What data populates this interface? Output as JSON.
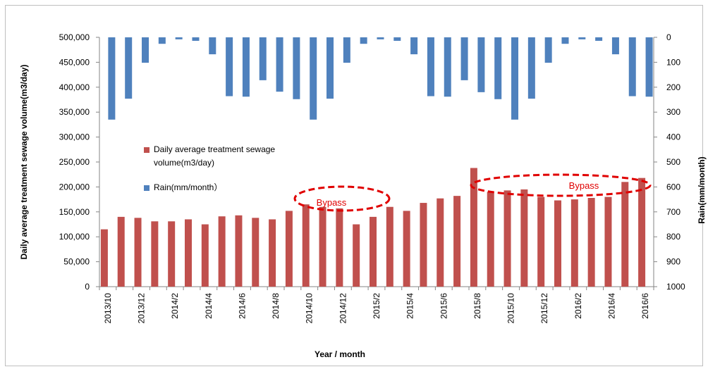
{
  "chart_data": {
    "type": "bar",
    "x_label": "Year / month",
    "y_label": "Daily average treatment sewage volume(m3/day)",
    "y2_label": "Rain(mm/month)",
    "categories": [
      "2013/10",
      null,
      "2013/12",
      null,
      "2014/2",
      null,
      "2014/4",
      null,
      "2014/6",
      null,
      "2014/8",
      null,
      "2014/10",
      null,
      "2014/12",
      null,
      "2015/2",
      null,
      "2015/4",
      null,
      "2015/6",
      null,
      "2015/8",
      null,
      "2015/10",
      null,
      "2015/12",
      null,
      "2016/2",
      null,
      "2016/4",
      null,
      "2016/6"
    ],
    "series": [
      {
        "name": "Daily average treatment sewage volume(m3/day)",
        "color": "#c0504d",
        "axis": "y",
        "values": [
          115000,
          140000,
          138000,
          131000,
          131000,
          135000,
          125000,
          141000,
          143000,
          138000,
          135000,
          152000,
          165000,
          160000,
          157000,
          125000,
          140000,
          160000,
          152000,
          168000,
          177000,
          182000,
          238000,
          190000,
          193000,
          195000,
          180000,
          173000,
          175000,
          178000,
          180000,
          210000,
          218000
        ]
      },
      {
        "name": "Rain(mm/month）",
        "color": "#4f81bd",
        "axis": "y2",
        "values": [
          330,
          246,
          102,
          26,
          8,
          14,
          68,
          236,
          238,
          172,
          218,
          248,
          330,
          246,
          102,
          26,
          8,
          14,
          68,
          236,
          238,
          172,
          220,
          248,
          330,
          246,
          102,
          26,
          8,
          14,
          68,
          236,
          238
        ]
      }
    ],
    "ylim": [
      0,
      500000
    ],
    "yticks": [
      0,
      {
        "value": 50000,
        "label": "50,000"
      },
      {
        "value": 100000,
        "label": "100,000"
      },
      {
        "value": 150000,
        "label": "150,000"
      },
      {
        "value": 200000,
        "label": "200,000"
      },
      {
        "value": 250000,
        "label": "250,000"
      },
      {
        "value": 300000,
        "label": "300,000"
      },
      {
        "value": 350000,
        "label": "350,000"
      },
      {
        "value": 400000,
        "label": "400,000"
      },
      {
        "value": 450000,
        "label": "450,000"
      },
      {
        "value": 500000,
        "label": "500,000"
      }
    ],
    "y2lim": [
      1000,
      0
    ],
    "y2ticks": [
      0,
      100,
      200,
      300,
      400,
      500,
      600,
      700,
      800,
      900,
      1000
    ],
    "annotations": [
      "Bypass",
      "Bypass"
    ]
  }
}
